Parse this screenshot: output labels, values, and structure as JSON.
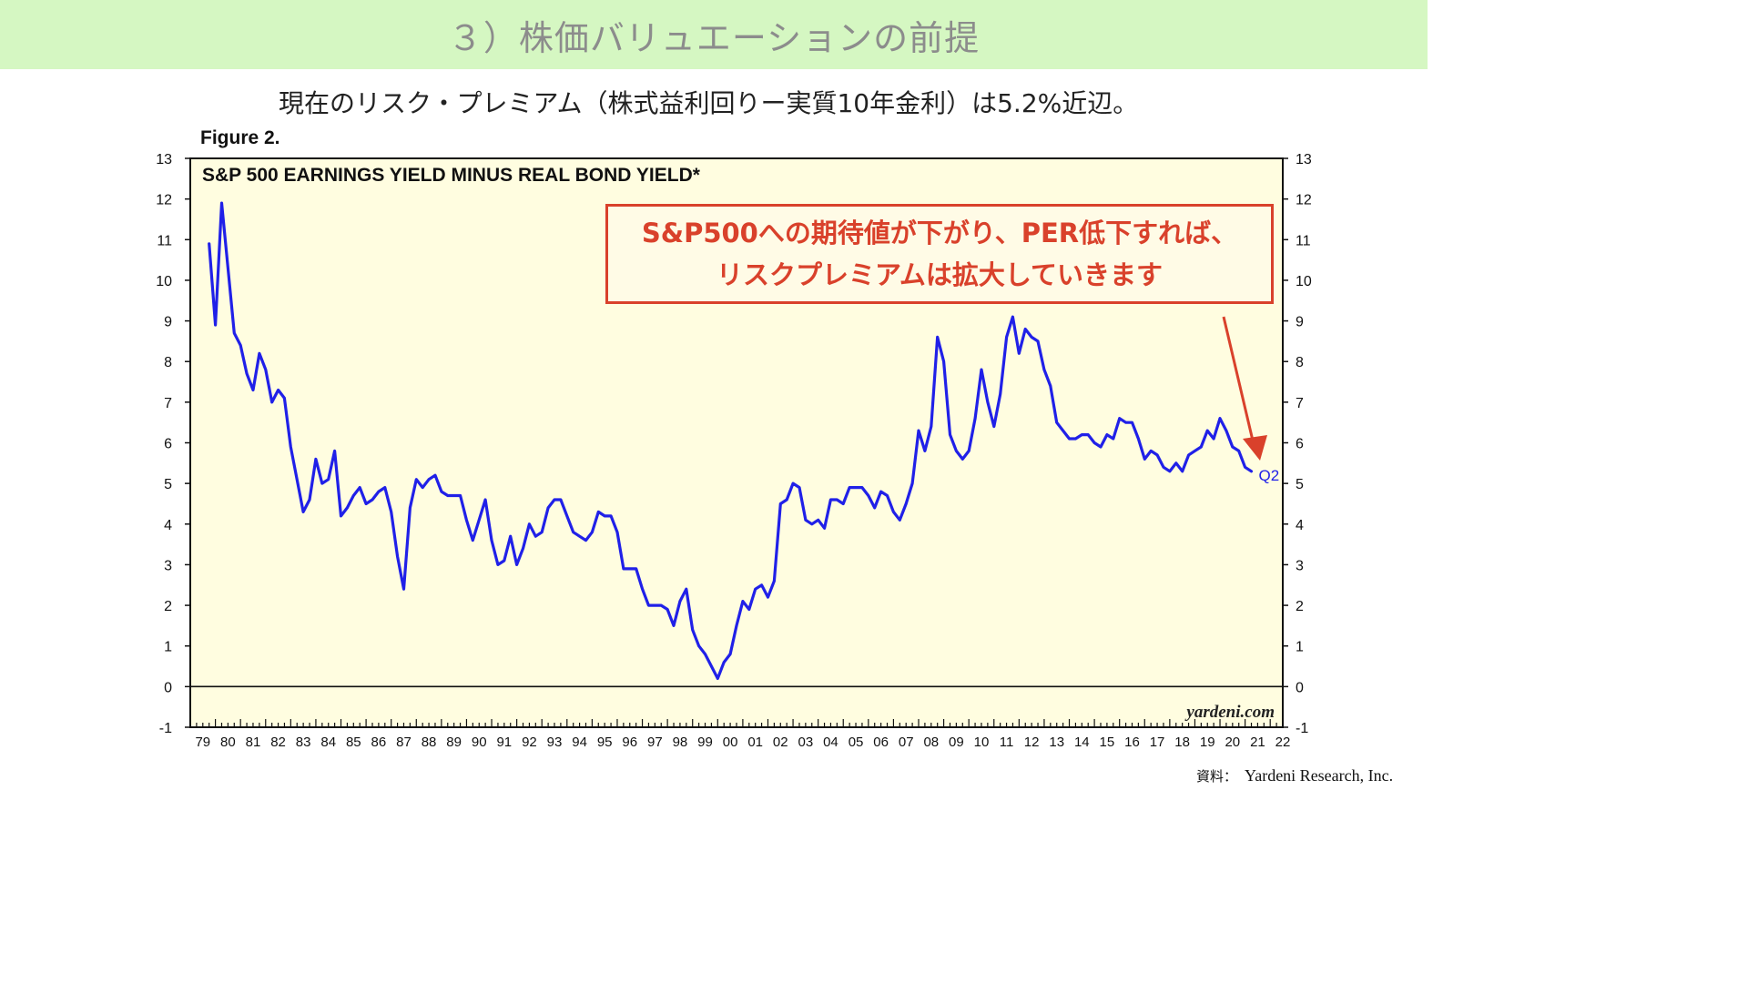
{
  "slide": {
    "title": "３）株価バリュエーションの前提",
    "subtitle": "現在のリスク・プレミアム（株式益利回りー実質10年金利）は5.2%近辺。",
    "figure_label": "Figure 2.",
    "source_label": "資料：",
    "source_value": "Yardeni Research, Inc."
  },
  "callout": {
    "line1": "S&P500への期待値が下がり、PER低下すれば、",
    "line2": "リスクプレミアムは拡大していきます"
  },
  "colors": {
    "banner": "#d5f7c2",
    "plot_background": "#fffde0",
    "series_line": "#2020e8",
    "callout": "#d9412b"
  },
  "chart_data": {
    "type": "line",
    "title": "S&P 500 EARNINGS YIELD MINUS REAL BOND YIELD*",
    "watermark": "yardeni.com",
    "xlabel": "",
    "ylabel": "",
    "xlim": [
      1979.0,
      2022.5
    ],
    "ylim": [
      -1,
      13
    ],
    "yticks": [
      -1,
      0,
      1,
      2,
      3,
      4,
      5,
      6,
      7,
      8,
      9,
      10,
      11,
      12,
      13
    ],
    "year_labels": [
      "79",
      "80",
      "81",
      "82",
      "83",
      "84",
      "85",
      "86",
      "87",
      "88",
      "89",
      "90",
      "91",
      "92",
      "93",
      "94",
      "95",
      "96",
      "97",
      "98",
      "99",
      "00",
      "01",
      "02",
      "03",
      "04",
      "05",
      "06",
      "07",
      "08",
      "09",
      "10",
      "11",
      "12",
      "13",
      "14",
      "15",
      "16",
      "17",
      "18",
      "19",
      "20",
      "21",
      "22"
    ],
    "end_label": "Q2",
    "grid": false,
    "series": [
      {
        "x": [
          1979.75,
          1980.0,
          1980.25,
          1980.5,
          1980.75,
          1981.0,
          1981.25,
          1981.5,
          1981.75,
          1982.0,
          1982.25,
          1982.5,
          1982.75,
          1983.0,
          1983.25,
          1983.5,
          1983.75,
          1984.0,
          1984.25,
          1984.5,
          1984.75,
          1985.0,
          1985.25,
          1985.5,
          1985.75,
          1986.0,
          1986.25,
          1986.5,
          1986.75,
          1987.0,
          1987.25,
          1987.5,
          1987.75,
          1988.0,
          1988.25,
          1988.5,
          1988.75,
          1989.0,
          1989.25,
          1989.5,
          1989.75,
          1990.0,
          1990.25,
          1990.5,
          1990.75,
          1991.0,
          1991.25,
          1991.5,
          1991.75,
          1992.0,
          1992.25,
          1992.5,
          1992.75,
          1993.0,
          1993.25,
          1993.5,
          1993.75,
          1994.0,
          1994.25,
          1994.5,
          1994.75,
          1995.0,
          1995.25,
          1995.5,
          1995.75,
          1996.0,
          1996.25,
          1996.5,
          1996.75,
          1997.0,
          1997.25,
          1997.5,
          1997.75,
          1998.0,
          1998.25,
          1998.5,
          1998.75,
          1999.0,
          1999.25,
          1999.5,
          1999.75,
          2000.0,
          2000.25,
          2000.5,
          2000.75,
          2001.0,
          2001.25,
          2001.5,
          2001.75,
          2002.0,
          2002.25,
          2002.5,
          2002.75,
          2003.0,
          2003.25,
          2003.5,
          2003.75,
          2004.0,
          2004.25,
          2004.5,
          2004.75,
          2005.0,
          2005.25,
          2005.5,
          2005.75,
          2006.0,
          2006.25,
          2006.5,
          2006.75,
          2007.0,
          2007.25,
          2007.5,
          2007.75,
          2008.0,
          2008.25,
          2008.5,
          2008.75,
          2009.0,
          2009.25,
          2009.5,
          2009.75,
          2010.0,
          2010.25,
          2010.5,
          2010.75,
          2011.0,
          2011.25,
          2011.5,
          2011.75,
          2012.0,
          2012.25,
          2012.5,
          2012.75,
          2013.0,
          2013.25,
          2013.5,
          2013.75,
          2014.0,
          2014.25,
          2014.5,
          2014.75,
          2015.0,
          2015.25,
          2015.5,
          2015.75,
          2016.0,
          2016.25,
          2016.5,
          2016.75,
          2017.0,
          2017.25,
          2017.5,
          2017.75,
          2018.0,
          2018.25,
          2018.5,
          2018.75,
          2019.0,
          2019.25,
          2019.5,
          2019.75,
          2020.0,
          2020.25,
          2020.5,
          2020.75,
          2021.0,
          2021.25
        ],
        "y": [
          10.9,
          8.9,
          11.9,
          10.3,
          8.7,
          8.4,
          7.7,
          7.3,
          8.2,
          7.8,
          7.0,
          7.3,
          7.1,
          5.9,
          5.1,
          4.3,
          4.6,
          5.6,
          5.0,
          5.1,
          5.8,
          4.2,
          4.4,
          4.7,
          4.9,
          4.5,
          4.6,
          4.8,
          4.9,
          4.3,
          3.2,
          2.4,
          4.4,
          5.1,
          4.9,
          5.1,
          5.2,
          4.8,
          4.7,
          4.7,
          4.7,
          4.1,
          3.6,
          4.1,
          4.6,
          3.6,
          3.0,
          3.1,
          3.7,
          3.0,
          3.4,
          4.0,
          3.7,
          3.8,
          4.4,
          4.6,
          4.6,
          4.2,
          3.8,
          3.7,
          3.6,
          3.8,
          4.3,
          4.2,
          4.2,
          3.8,
          2.9,
          2.9,
          2.9,
          2.4,
          2.0,
          2.0,
          2.0,
          1.9,
          1.5,
          2.1,
          2.4,
          1.4,
          1.0,
          0.8,
          0.5,
          0.2,
          0.6,
          0.8,
          1.5,
          2.1,
          1.9,
          2.4,
          2.5,
          2.2,
          2.6,
          4.5,
          4.6,
          5.0,
          4.9,
          4.1,
          4.0,
          4.1,
          3.9,
          4.6,
          4.6,
          4.5,
          4.9,
          4.9,
          4.9,
          4.7,
          4.4,
          4.8,
          4.7,
          4.3,
          4.1,
          4.5,
          5.0,
          6.3,
          5.8,
          6.4,
          8.6,
          8.0,
          6.2,
          5.8,
          5.6,
          5.8,
          6.6,
          7.8,
          7.0,
          6.4,
          7.2,
          8.6,
          9.1,
          8.2,
          8.8,
          8.6,
          8.5,
          7.8,
          7.4,
          6.5,
          6.3,
          6.1,
          6.1,
          6.2,
          6.2,
          6.0,
          5.9,
          6.2,
          6.1,
          6.6,
          6.5,
          6.5,
          6.1,
          5.6,
          5.8,
          5.7,
          5.4,
          5.3,
          5.5,
          5.3,
          5.7,
          5.8,
          5.9,
          6.3,
          6.1,
          6.6,
          6.3,
          5.9,
          5.8,
          5.4,
          5.3
        ]
      }
    ]
  }
}
